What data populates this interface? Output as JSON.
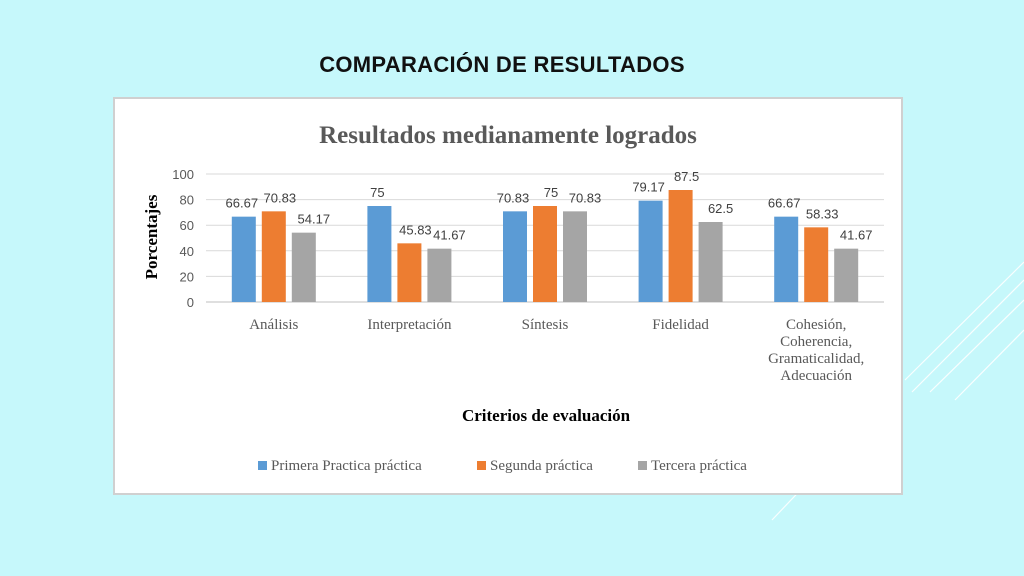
{
  "slide": {
    "title": "COMPARACIÓN DE RESULTADOS"
  },
  "chart_data": {
    "type": "bar",
    "title": "Resultados medianamente logrados",
    "xlabel": "Criterios de evaluación",
    "ylabel": "Porcentajes",
    "ylim": [
      0,
      100
    ],
    "yticks": [
      0,
      20,
      40,
      60,
      80,
      100
    ],
    "grid": true,
    "legend_position": "bottom",
    "categories": [
      [
        "Análisis"
      ],
      [
        "Interpretación"
      ],
      [
        "Síntesis"
      ],
      [
        "Fidelidad"
      ],
      [
        "Cohesión,",
        "Coherencia,",
        "Gramaticalidad,",
        "Adecuación"
      ]
    ],
    "series": [
      {
        "name": "Primera Practica  práctica",
        "color": "#5b9bd5",
        "values": [
          66.67,
          75,
          70.83,
          79.17,
          66.67
        ],
        "labels": [
          "66.67",
          "75",
          "70.83",
          "79.17",
          "66.67"
        ]
      },
      {
        "name": "Segunda práctica",
        "color": "#ed7d31",
        "values": [
          70.83,
          45.83,
          75,
          87.5,
          58.33
        ],
        "labels": [
          "70.83",
          "45.83",
          "75",
          "87.5",
          "58.33"
        ]
      },
      {
        "name": "Tercera práctica",
        "color": "#a5a5a5",
        "values": [
          54.17,
          41.67,
          70.83,
          62.5,
          41.67
        ],
        "labels": [
          "54.17",
          "41.67",
          "70.83",
          "62.5",
          "41.67"
        ]
      }
    ]
  }
}
